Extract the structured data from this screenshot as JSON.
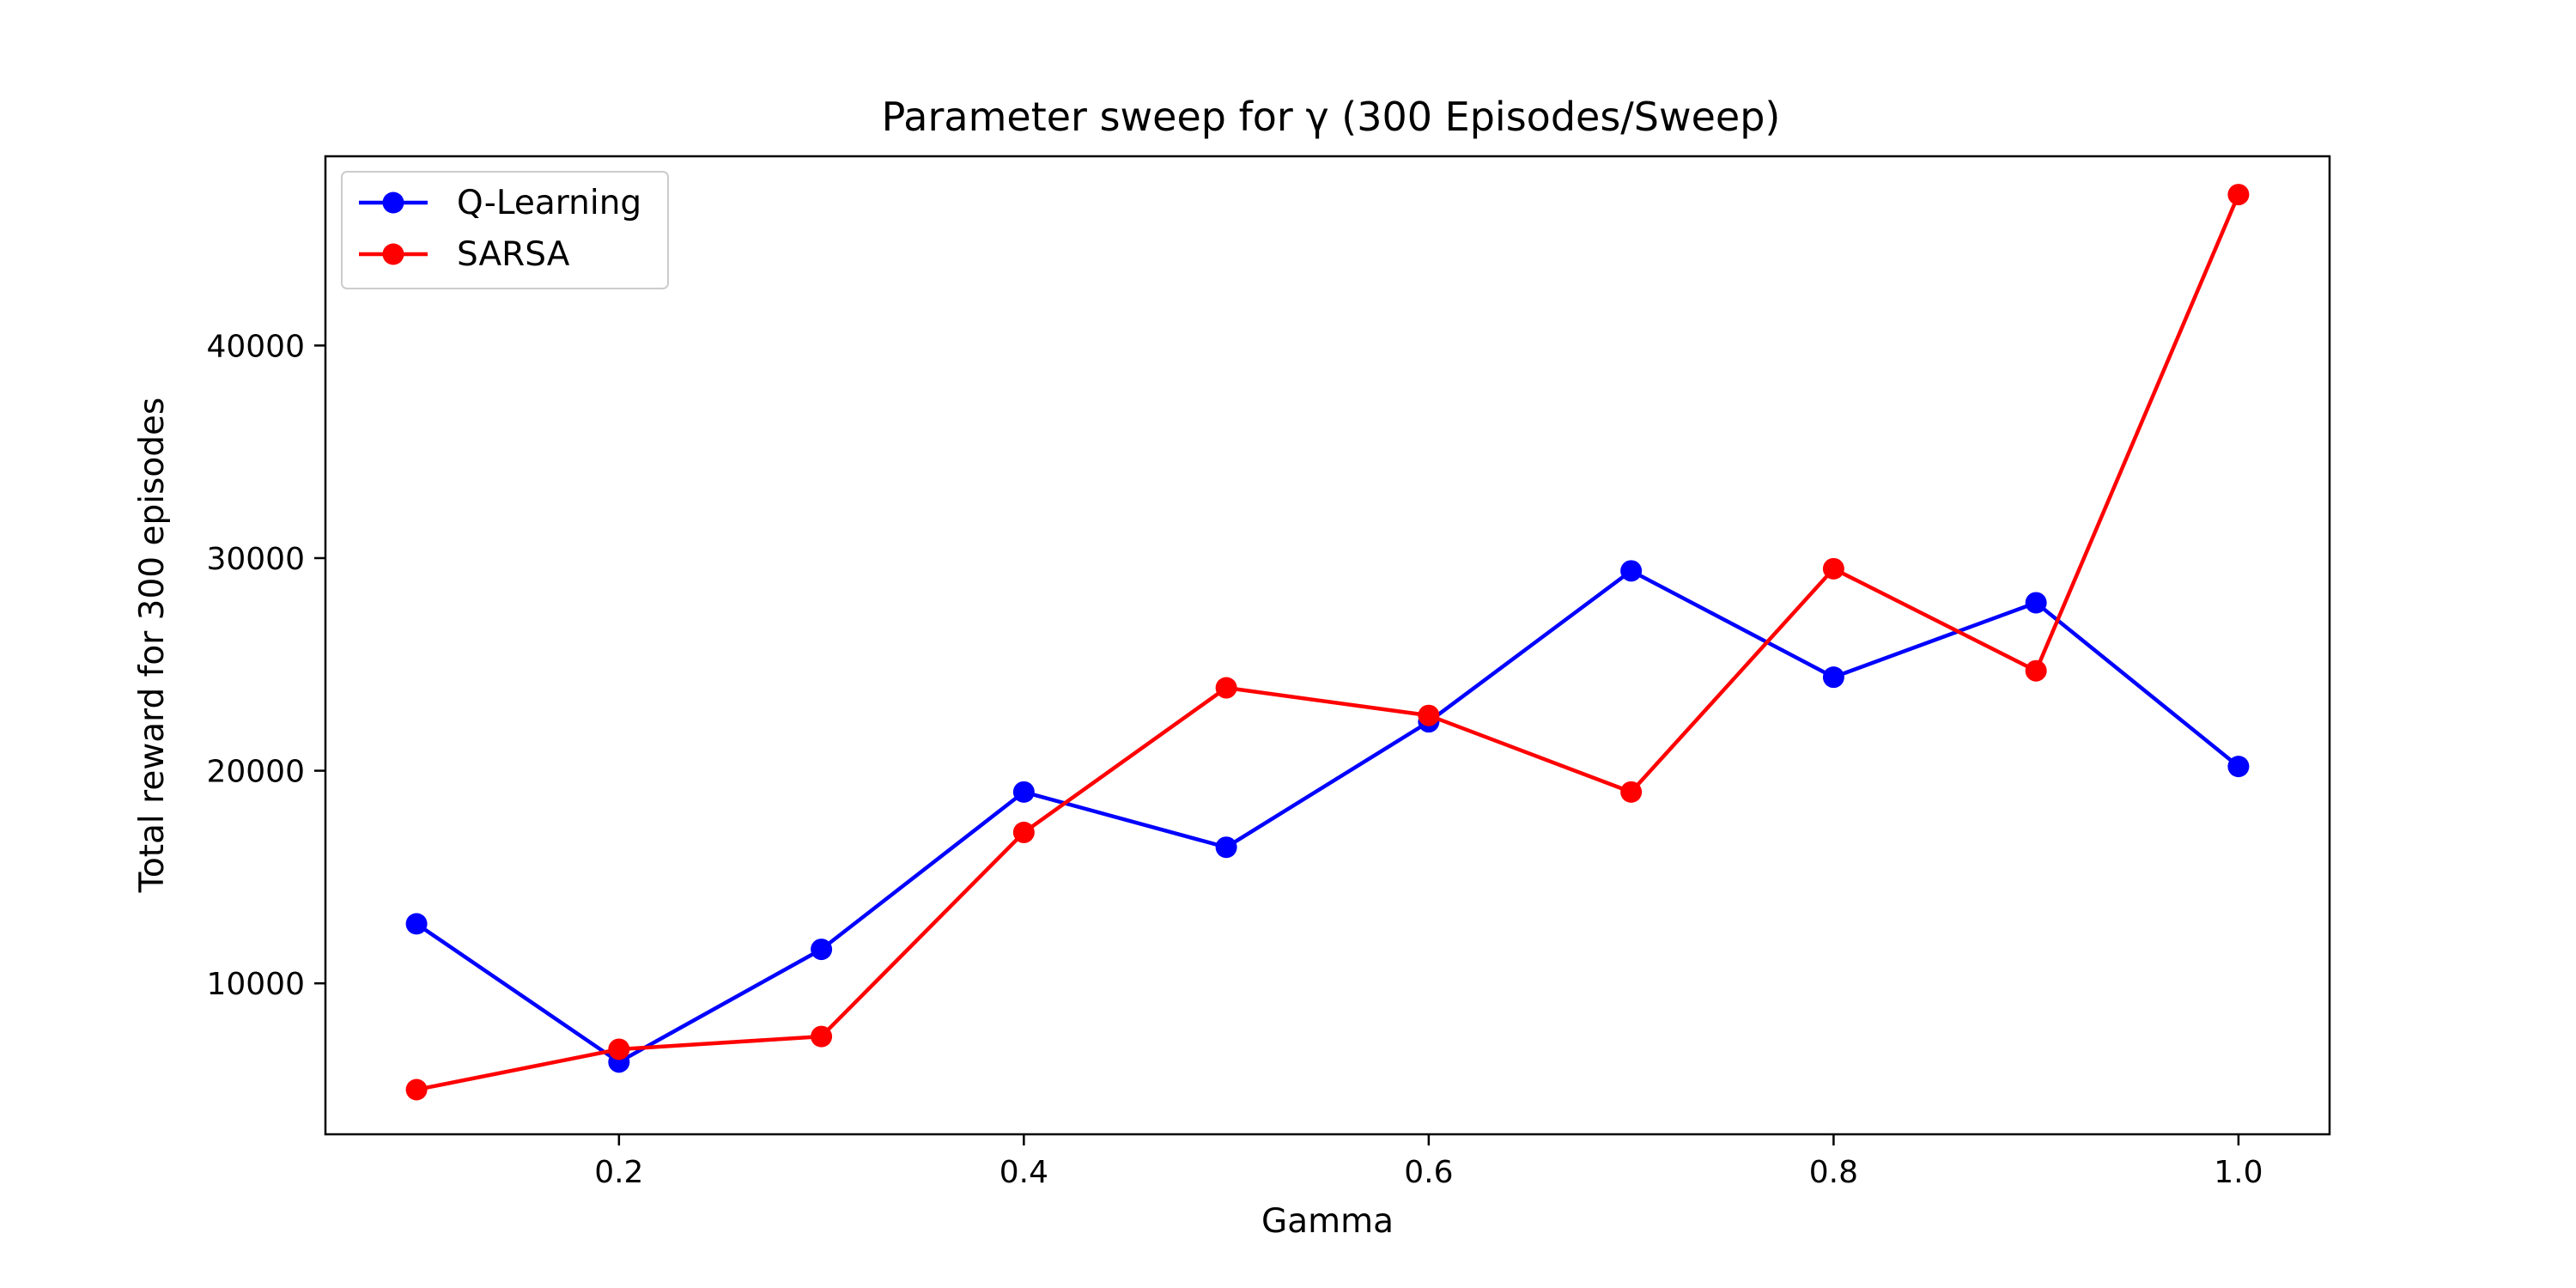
{
  "chart_data": {
    "type": "line",
    "title": "Parameter sweep for γ (300 Episodes/Sweep)",
    "xlabel": "Gamma",
    "ylabel": "Total reward for 300 episodes",
    "x": [
      0.1,
      0.2,
      0.3,
      0.4,
      0.5,
      0.6,
      0.7,
      0.8,
      0.9,
      1.0
    ],
    "xlim": [
      0.055,
      1.045
    ],
    "ylim": [
      2900,
      48900
    ],
    "x_ticks": [
      0.2,
      0.4,
      0.6,
      0.8,
      1.0
    ],
    "x_tick_labels": [
      "0.2",
      "0.4",
      "0.6",
      "0.8",
      "1.0"
    ],
    "y_ticks": [
      10000,
      20000,
      30000,
      40000
    ],
    "y_tick_labels": [
      "10000",
      "20000",
      "30000",
      "40000"
    ],
    "grid": false,
    "legend_position": "top-left",
    "series": [
      {
        "name": "Q-Learning",
        "color": "#0000ff",
        "marker": "circle",
        "values": [
          12800,
          6300,
          11600,
          19000,
          16400,
          22300,
          29400,
          24400,
          27900,
          20200
        ]
      },
      {
        "name": "SARSA",
        "color": "#ff0000",
        "marker": "circle",
        "values": [
          5000,
          6900,
          7500,
          17100,
          23900,
          22600,
          19000,
          29500,
          24700,
          47100
        ]
      }
    ]
  }
}
